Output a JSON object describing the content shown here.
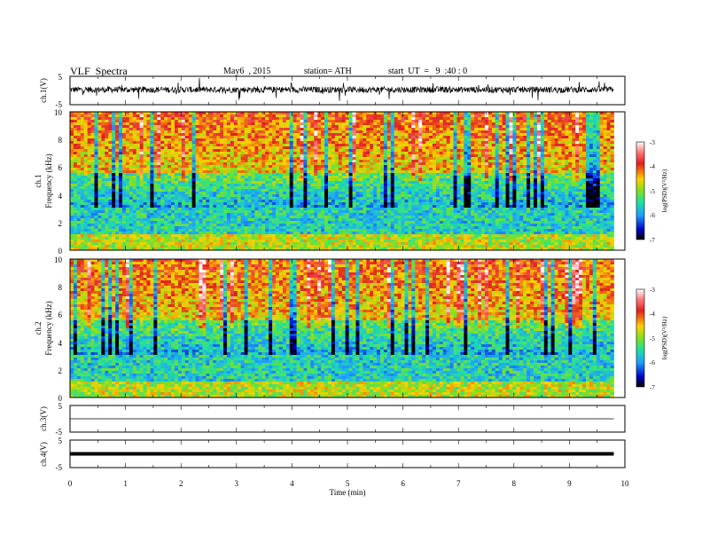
{
  "header": {
    "title": "VLF  Spectra",
    "date": "May6  , 2015",
    "station": "station= ATH",
    "start": "start  UT  =   9  :40 : 0"
  },
  "chart_data": [
    {
      "type": "line",
      "name": "ch1-waveform",
      "ylabel": "ch.1(V)",
      "ylim": [
        -5,
        5
      ],
      "y_ticks": [
        "5",
        "-5"
      ],
      "xlim": [
        0,
        10
      ],
      "description_level": 0.3
    },
    {
      "type": "heatmap",
      "name": "ch1-spectrogram",
      "ylabel_line1": "ch.1",
      "ylabel_line2": "Frequency  (kHz)",
      "ylim": [
        0,
        10
      ],
      "y_ticks": [
        "0",
        "2",
        "4",
        "6",
        "8",
        "10"
      ],
      "xlim": [
        0,
        10
      ],
      "data_xmax": 9.8,
      "colorbar": {
        "label": "log(PSD)(V²/Hz)",
        "range": [
          -7,
          -3
        ],
        "ticks": [
          "-3",
          "-4",
          "-5",
          "-6",
          "-7"
        ]
      }
    },
    {
      "type": "heatmap",
      "name": "ch2-spectrogram",
      "ylabel_line1": "ch.2",
      "ylabel_line2": "Frequency  (kHz)",
      "ylim": [
        0,
        10
      ],
      "y_ticks": [
        "0",
        "2",
        "4",
        "6",
        "8",
        "10"
      ],
      "xlim": [
        0,
        10
      ],
      "data_xmax": 9.8,
      "colorbar": {
        "label": "log(PSD)(V²/Hz)",
        "range": [
          -7,
          -3
        ],
        "ticks": [
          "-3",
          "-4",
          "-5",
          "-6",
          "-7"
        ]
      }
    },
    {
      "type": "line",
      "name": "ch3-waveform",
      "ylabel": "ch.3(V)",
      "ylim": [
        -5,
        5
      ],
      "y_ticks": [
        "5",
        "-5"
      ],
      "xlim": [
        0,
        10
      ],
      "level": 0
    },
    {
      "type": "line",
      "name": "ch4-waveform",
      "ylabel": "ch.4(V)",
      "ylim": [
        -5,
        5
      ],
      "y_ticks": [
        "5",
        "-5"
      ],
      "xlim": [
        0,
        10
      ],
      "level": 0
    }
  ],
  "x_axis": {
    "label": "Time  (min)",
    "ticks": [
      "0",
      "1",
      "2",
      "3",
      "4",
      "5",
      "6",
      "7",
      "8",
      "9",
      "10"
    ]
  },
  "colors": {
    "axis": "#000000",
    "trace": "#000000"
  }
}
